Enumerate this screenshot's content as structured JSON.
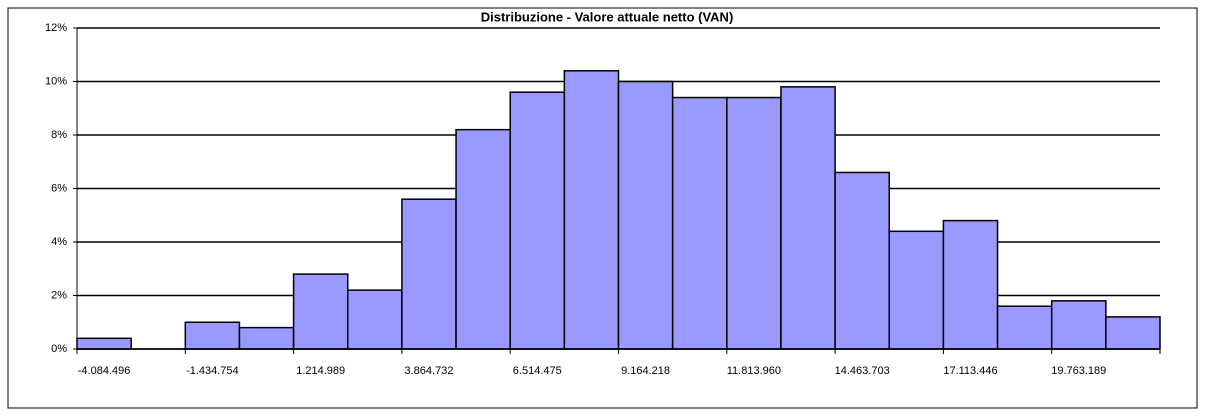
{
  "chart_data": {
    "type": "bar",
    "title": "Distribuzione - Valore attuale netto (VAN)",
    "categories": [
      "-4.084.496",
      null,
      "-1.434.754",
      null,
      "1.214.989",
      null,
      "3.864.732",
      null,
      "6.514.475",
      null,
      "9.164.218",
      null,
      "11.813.960",
      null,
      "14.463.703",
      null,
      "17.113.446",
      null,
      "19.763.189",
      null
    ],
    "values": [
      0.4,
      0,
      1.0,
      0.8,
      2.8,
      2.2,
      5.6,
      8.2,
      9.6,
      10.4,
      10.0,
      9.4,
      9.4,
      9.8,
      6.6,
      4.4,
      4.8,
      1.6,
      1.8,
      1.2
    ],
    "color": "#9999ff",
    "ylim": [
      0,
      12
    ],
    "yticks": [
      {
        "value": 0,
        "label": "0%"
      },
      {
        "value": 2,
        "label": "2%"
      },
      {
        "value": 4,
        "label": "4%"
      },
      {
        "value": 6,
        "label": "6%"
      },
      {
        "value": 8,
        "label": "8%"
      },
      {
        "value": 10,
        "label": "10%"
      },
      {
        "value": 12,
        "label": "12%"
      }
    ],
    "grid": true
  }
}
